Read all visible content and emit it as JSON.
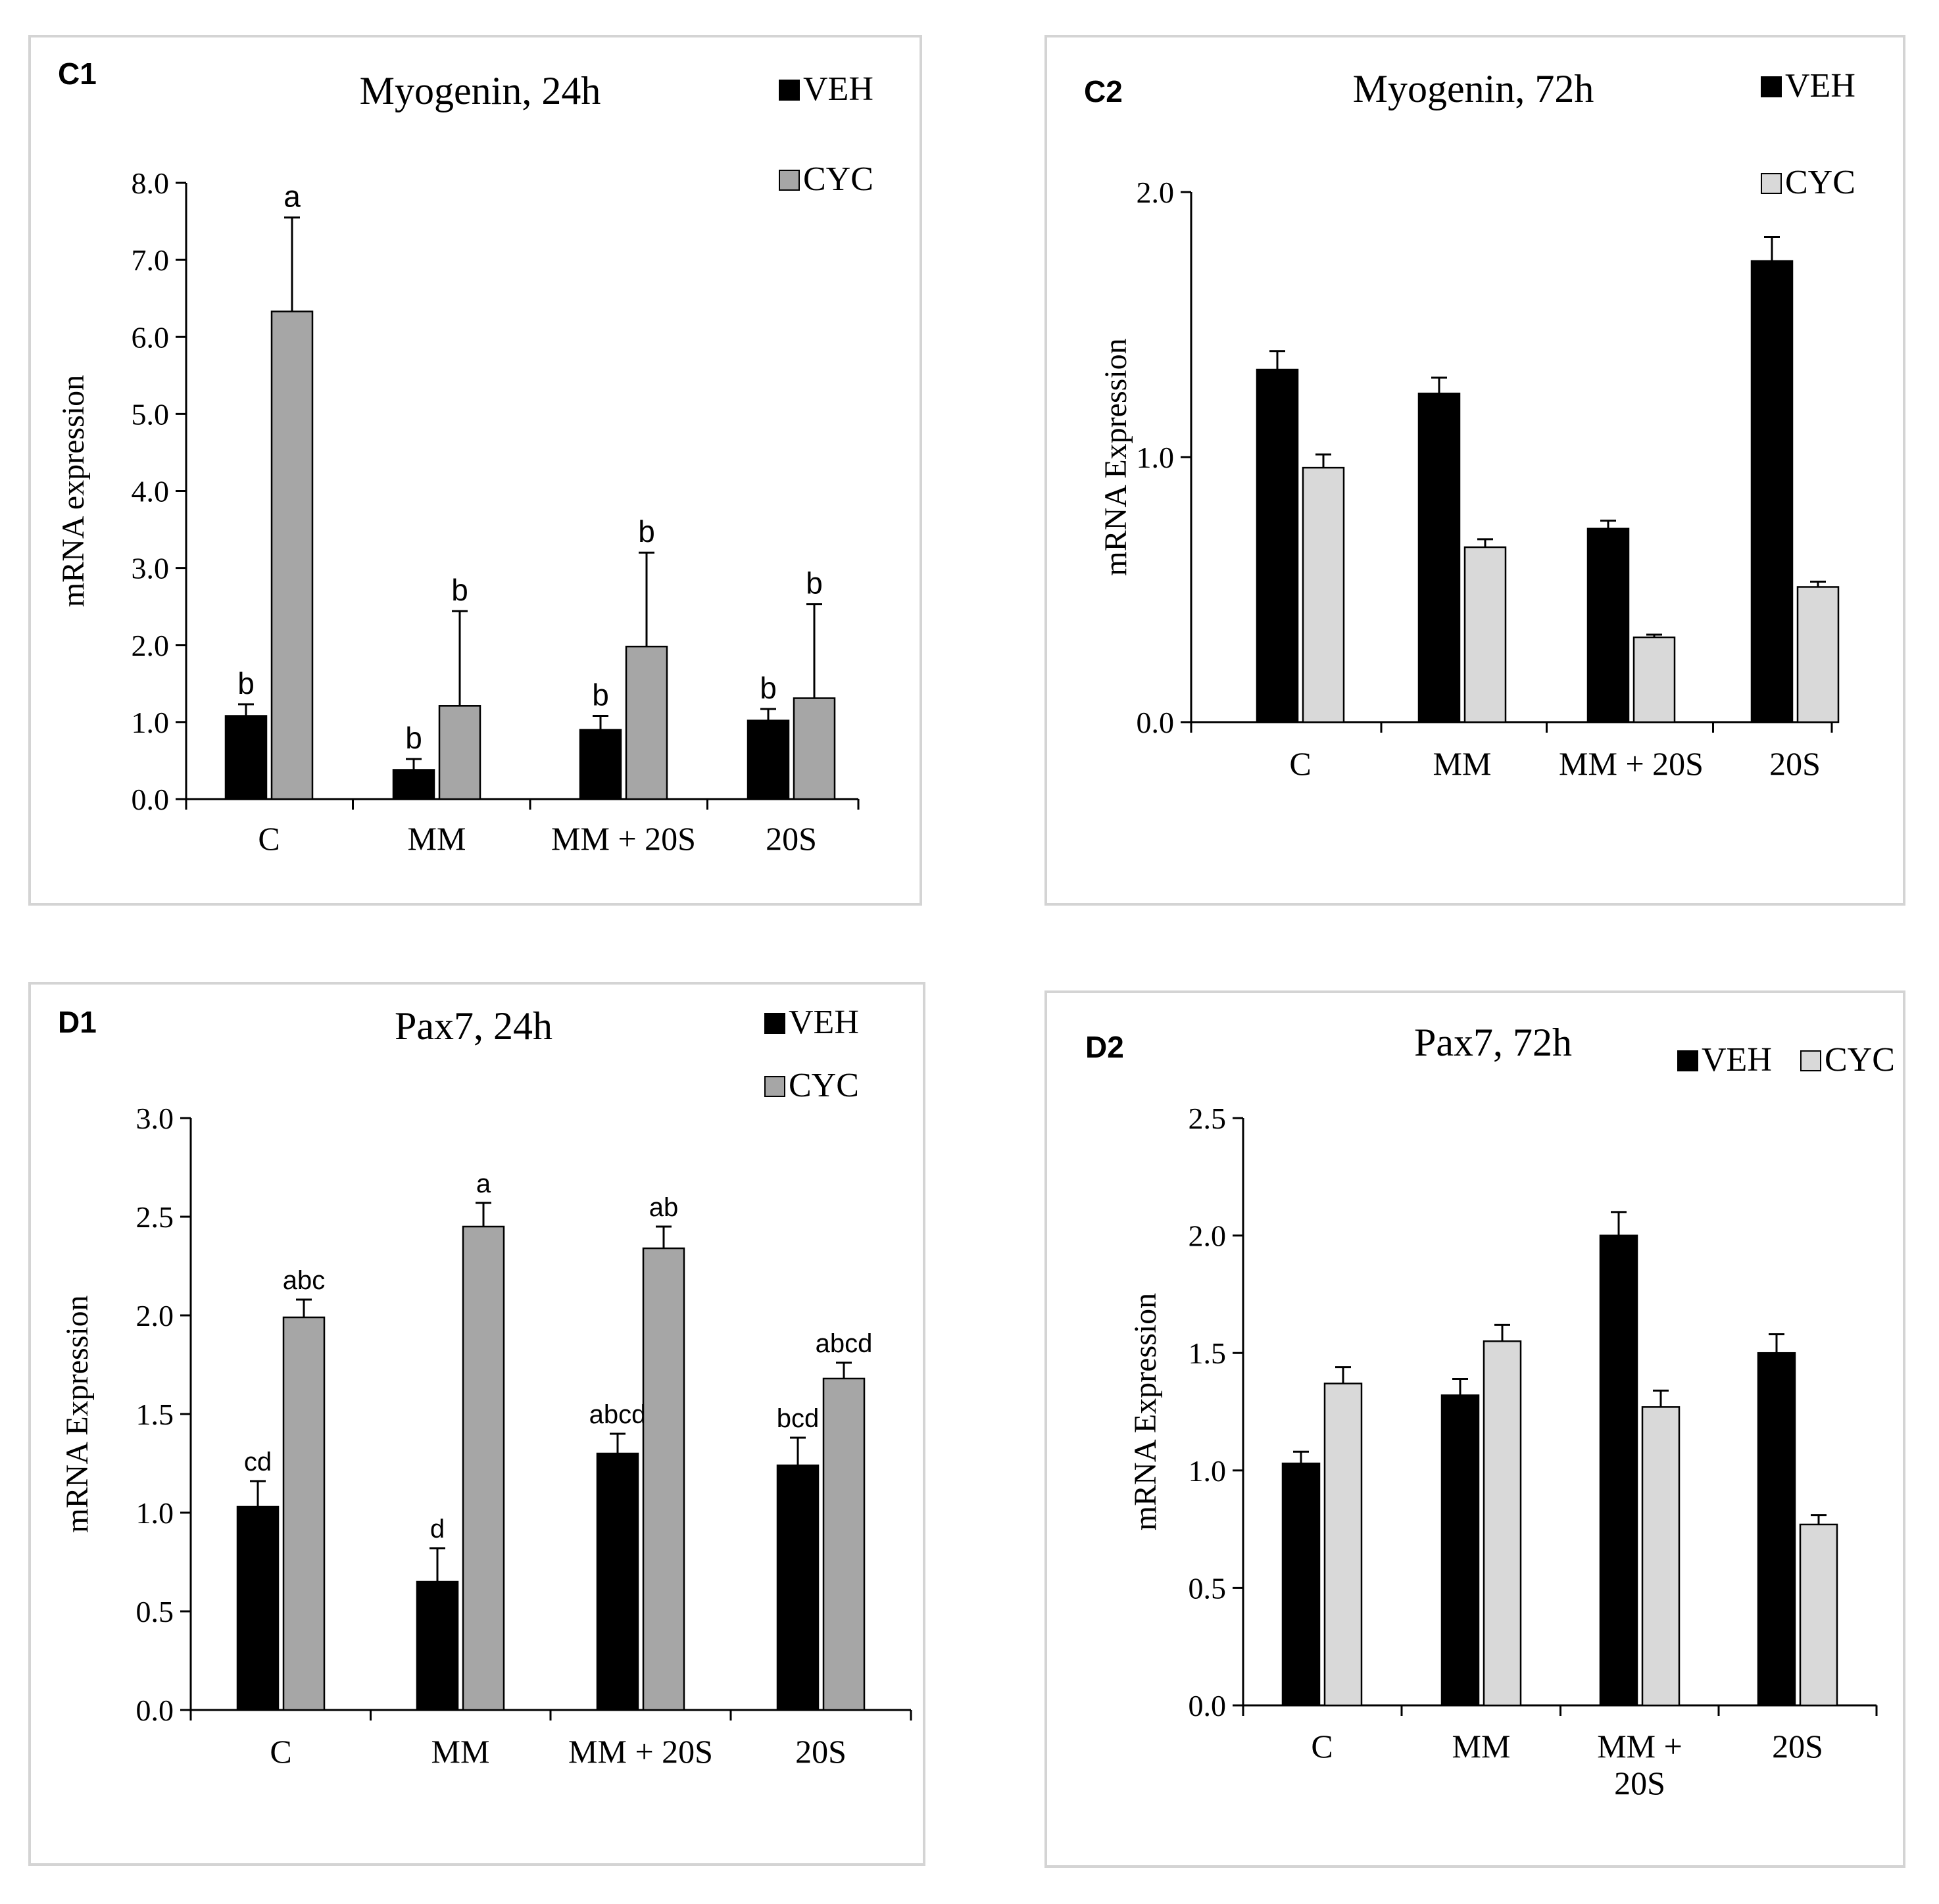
{
  "colors": {
    "veh": "#000000",
    "cyc_c1": "#a6a6a6",
    "cyc_d1": "#a6a6a6",
    "cyc_light": "#d9d9d9",
    "panel_border": "#d4d4d4",
    "axis": "#000000"
  },
  "chart_data": [
    {
      "id": "C1",
      "type": "bar",
      "panel_label": "C1",
      "title": "Myogenin, 24h",
      "ylabel": "mRNA expression",
      "xlabel": "",
      "categories": [
        "C",
        "MM",
        "MM + 20S",
        "20S"
      ],
      "ylim": [
        0,
        8
      ],
      "yticks": [
        0,
        1,
        2,
        3,
        4,
        5,
        6,
        7,
        8
      ],
      "ytick_labels": [
        "0.0",
        "1.0",
        "2.0",
        "3.0",
        "4.0",
        "5.0",
        "6.0",
        "7.0",
        "8.0"
      ],
      "legend": "top-right-stacked",
      "cyc_color_key": "cyc_c1",
      "series": [
        {
          "name": "VEH",
          "values": [
            1.08,
            0.38,
            0.9,
            1.02
          ],
          "errors": [
            0.15,
            0.14,
            0.18,
            0.15
          ],
          "letters": [
            "b",
            "b",
            "b",
            "b"
          ]
        },
        {
          "name": "CYC",
          "values": [
            6.33,
            1.21,
            1.98,
            1.31
          ],
          "errors": [
            1.22,
            1.23,
            1.22,
            1.22
          ],
          "letters": [
            "a",
            "b",
            "b",
            "b"
          ]
        }
      ]
    },
    {
      "id": "C2",
      "type": "bar",
      "panel_label": "C2",
      "title": "Myogenin, 72h",
      "ylabel": "mRNA Expression",
      "xlabel": "",
      "categories": [
        "C",
        "MM",
        "MM + 20S",
        "20S"
      ],
      "ylim": [
        0,
        2
      ],
      "yticks": [
        0,
        1,
        2
      ],
      "ytick_labels": [
        "0.0",
        "1.0",
        "2.0"
      ],
      "legend": "top-right-stacked",
      "cyc_color_key": "cyc_light",
      "series": [
        {
          "name": "VEH",
          "values": [
            1.33,
            1.24,
            0.73,
            1.74
          ],
          "errors": [
            0.07,
            0.06,
            0.03,
            0.09
          ],
          "letters": []
        },
        {
          "name": "CYC",
          "values": [
            0.96,
            0.66,
            0.32,
            0.51
          ],
          "errors": [
            0.05,
            0.03,
            0.01,
            0.02
          ],
          "letters": []
        }
      ]
    },
    {
      "id": "D1",
      "type": "bar",
      "panel_label": "D1",
      "title": "Pax7, 24h",
      "ylabel": "mRNA Expression",
      "xlabel": "",
      "categories": [
        "C",
        "MM",
        "MM + 20S",
        "20S"
      ],
      "ylim": [
        0,
        3
      ],
      "yticks": [
        0,
        0.5,
        1,
        1.5,
        2,
        2.5,
        3
      ],
      "ytick_labels": [
        "0.0",
        "0.5",
        "1.0",
        "1.5",
        "2.0",
        "2.5",
        "3.0"
      ],
      "legend": "top-right-stacked",
      "cyc_color_key": "cyc_d1",
      "series": [
        {
          "name": "VEH",
          "values": [
            1.03,
            0.65,
            1.3,
            1.24
          ],
          "errors": [
            0.13,
            0.17,
            0.1,
            0.14
          ],
          "letters": [
            "cd",
            "d",
            "abcd",
            "bcd"
          ]
        },
        {
          "name": "CYC",
          "values": [
            1.99,
            2.45,
            2.34,
            1.68
          ],
          "errors": [
            0.09,
            0.12,
            0.11,
            0.08
          ],
          "letters": [
            "abc",
            "a",
            "ab",
            "abcd"
          ]
        }
      ]
    },
    {
      "id": "D2",
      "type": "bar",
      "panel_label": "D2",
      "title": "Pax7, 72h",
      "ylabel": "mRNA Expression",
      "xlabel": "",
      "categories": [
        "C",
        "MM",
        "MM + 20S",
        "20S"
      ],
      "category_lines": [
        [
          "C"
        ],
        [
          "MM"
        ],
        [
          "MM +",
          "20S"
        ],
        [
          "20S"
        ]
      ],
      "ylim": [
        0,
        2.5
      ],
      "yticks": [
        0,
        0.5,
        1,
        1.5,
        2,
        2.5
      ],
      "ytick_labels": [
        "0.0",
        "0.5",
        "1.0",
        "1.5",
        "2.0",
        "2.5"
      ],
      "legend": "top-right-inline",
      "cyc_color_key": "cyc_light",
      "series": [
        {
          "name": "VEH",
          "values": [
            1.03,
            1.32,
            2.0,
            1.5
          ],
          "errors": [
            0.05,
            0.07,
            0.1,
            0.08
          ],
          "letters": []
        },
        {
          "name": "CYC",
          "values": [
            1.37,
            1.55,
            1.27,
            0.77
          ],
          "errors": [
            0.07,
            0.07,
            0.07,
            0.04
          ],
          "letters": []
        }
      ]
    }
  ]
}
